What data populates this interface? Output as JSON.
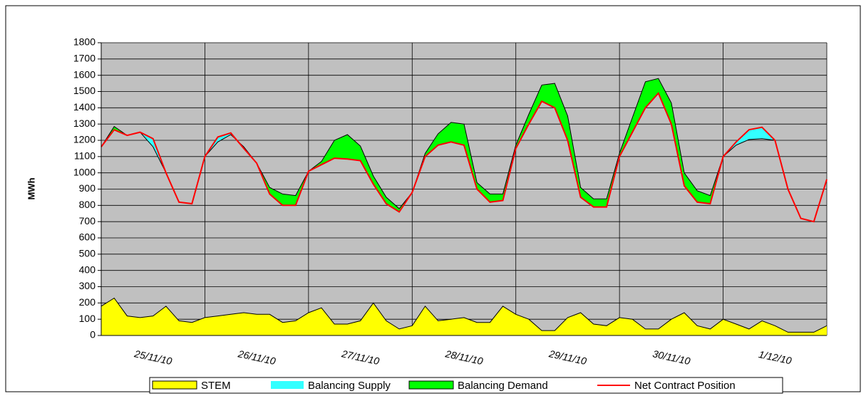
{
  "chart_data": {
    "type": "area",
    "y_label": "MWh",
    "ylim": [
      0,
      1800
    ],
    "yticks": [
      0,
      100,
      200,
      300,
      400,
      500,
      600,
      700,
      800,
      900,
      1000,
      1100,
      1200,
      1300,
      1400,
      1500,
      1600,
      1700,
      1800
    ],
    "grid": true,
    "categories": [
      null,
      null,
      null,
      null,
      "25/11/10",
      null,
      null,
      null,
      null,
      null,
      null,
      null,
      "26/11/10",
      null,
      null,
      null,
      null,
      null,
      null,
      null,
      "27/11/10",
      null,
      null,
      null,
      null,
      null,
      null,
      null,
      "28/11/10",
      null,
      null,
      null,
      null,
      null,
      null,
      null,
      "29/11/10",
      null,
      null,
      null,
      null,
      null,
      null,
      null,
      "30/11/10",
      null,
      null,
      null,
      null,
      null,
      null,
      null,
      "1/12/10",
      null,
      null,
      null,
      null
    ],
    "series": [
      {
        "name": "STEM",
        "color": "#ffff00",
        "values": [
          180,
          230,
          120,
          110,
          120,
          180,
          90,
          80,
          110,
          120,
          130,
          140,
          130,
          130,
          80,
          90,
          140,
          170,
          70,
          70,
          90,
          200,
          90,
          40,
          60,
          180,
          90,
          100,
          110,
          80,
          80,
          180,
          130,
          100,
          30,
          30,
          110,
          140,
          70,
          60,
          110,
          100,
          40,
          40,
          100,
          140,
          60,
          40,
          100,
          70,
          40,
          90,
          60,
          20,
          20,
          20,
          60
        ]
      },
      {
        "name": "Balancing Supply",
        "color": "#33ffff",
        "values": [
          0,
          0,
          0,
          0,
          50,
          0,
          0,
          0,
          0,
          30,
          10,
          0,
          0,
          0,
          0,
          0,
          0,
          0,
          0,
          0,
          0,
          0,
          0,
          0,
          0,
          0,
          0,
          0,
          0,
          0,
          0,
          0,
          0,
          0,
          0,
          0,
          0,
          0,
          0,
          0,
          0,
          0,
          0,
          0,
          0,
          0,
          0,
          0,
          0,
          20,
          60,
          70,
          0,
          0,
          0,
          0,
          0
        ]
      },
      {
        "name": "Balancing Demand",
        "color": "#00ff00",
        "values": [
          0,
          20,
          0,
          0,
          0,
          0,
          0,
          0,
          0,
          0,
          0,
          10,
          0,
          40,
          70,
          60,
          0,
          20,
          110,
          150,
          90,
          50,
          40,
          20,
          0,
          20,
          70,
          120,
          130,
          40,
          50,
          40,
          20,
          60,
          100,
          150,
          150,
          60,
          50,
          50,
          20,
          90,
          160,
          90,
          130,
          80,
          70,
          50,
          0,
          0,
          0,
          0,
          0,
          0,
          0,
          0,
          0
        ]
      },
      {
        "name": "Net Contract Position",
        "color": "#ff0000",
        "values": [
          1160,
          1265,
          1230,
          1250,
          1210,
          1000,
          820,
          810,
          1100,
          1220,
          1245,
          1150,
          1060,
          870,
          800,
          800,
          1010,
          1050,
          1090,
          1085,
          1075,
          930,
          810,
          760,
          880,
          1100,
          1170,
          1190,
          1170,
          900,
          820,
          830,
          1150,
          1300,
          1440,
          1400,
          1200,
          850,
          790,
          790,
          1100,
          1250,
          1400,
          1490,
          1300,
          920,
          820,
          810,
          1100,
          1190,
          1265,
          1280,
          1200,
          900,
          720,
          700,
          960
        ]
      }
    ]
  }
}
